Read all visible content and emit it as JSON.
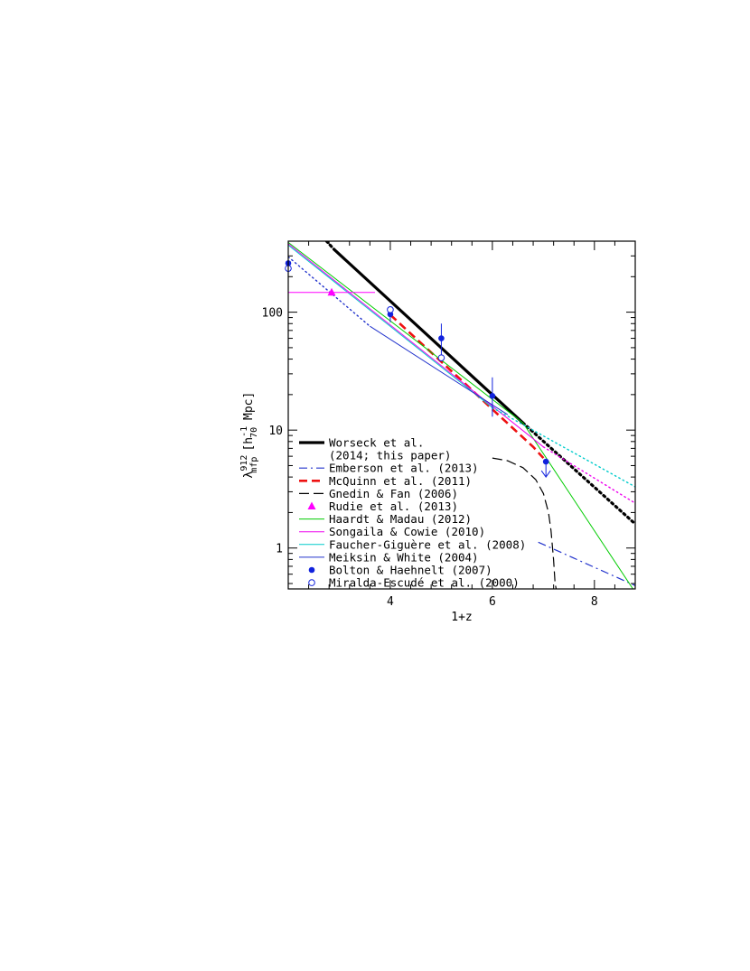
{
  "chart_data": {
    "type": "line",
    "xlabel": "1+z",
    "ylabel": {
      "symbol": "λ",
      "sup": "912",
      "sub": "mfp",
      "unit_open": "[h",
      "unit_sup": "-1",
      "unit_sub": "70",
      "unit_close": " Mpc]"
    },
    "xlim": [
      2.0,
      8.8
    ],
    "ylim": [
      0.45,
      400
    ],
    "yscale": "log",
    "x_ticks": [
      4,
      6,
      8
    ],
    "x_tick_labels": [
      "4",
      "6",
      "8"
    ],
    "y_ticks": [
      1,
      10,
      100
    ],
    "y_tick_labels": [
      "1",
      "10",
      "100"
    ],
    "legend_position": "bottom-left",
    "series": [
      {
        "name": "Worseck et al.",
        "name2": "(2014; this paper)",
        "color": "#000000",
        "style": "solid-thick",
        "x": [
          2.9,
          6.6
        ],
        "y": [
          340,
          11.5
        ],
        "extension": {
          "style": "dotted-thick",
          "x": [
            2.75,
            2.9
          ],
          "y": [
            400,
            340
          ],
          "x2": [
            6.6,
            8.8
          ],
          "y2": [
            11.5,
            1.6
          ]
        }
      },
      {
        "name": "Emberson et al. (2013)",
        "color": "#2233cc",
        "style": "dashdot",
        "x": [
          6.9,
          8.8
        ],
        "y": [
          1.12,
          0.48
        ]
      },
      {
        "name": "McQuinn et al. (2011)",
        "color": "#ee1111",
        "style": "dashed-thick",
        "x": [
          4.0,
          4.5,
          5.0,
          5.5,
          6.0,
          6.5,
          6.8,
          7.0
        ],
        "y": [
          95,
          60,
          38,
          24,
          15,
          9.5,
          7.2,
          5.8
        ]
      },
      {
        "name": "Gnedin & Fan (2006)",
        "color": "#000000",
        "style": "longdash",
        "x": [
          6.0,
          6.3,
          6.6,
          6.85,
          7.0,
          7.1,
          7.15,
          7.2,
          7.23,
          7.25
        ],
        "y": [
          5.8,
          5.5,
          4.8,
          3.8,
          2.9,
          2.0,
          1.4,
          0.8,
          0.5,
          0.45
        ]
      },
      {
        "name": "Rudie et al. (2013)",
        "color": "#ff00ff",
        "style": "marker-triangle",
        "x": [
          2.85
        ],
        "y": [
          147
        ],
        "xerr": [
          [
            2.0,
            3.7
          ]
        ],
        "yerr": [
          [
            138,
            157
          ]
        ]
      },
      {
        "name": "Haardt & Madau (2012)",
        "color": "#00cc00",
        "style": "solid",
        "x": [
          2.0,
          6.6,
          8.8
        ],
        "y": [
          390,
          11.5,
          0.42
        ]
      },
      {
        "name": "Songaila & Cowie (2010)",
        "color": "#ee00ee",
        "style": "solid",
        "x": [
          2.0,
          7.0
        ],
        "y": [
          380,
          7.2
        ],
        "extension": {
          "style": "dotted",
          "x": [
            7.0,
            8.8
          ],
          "y": [
            7.2,
            2.4
          ]
        }
      },
      {
        "name": "Faucher-Giguère et al. (2008)",
        "color": "#00cccc",
        "style": "solid",
        "x": [
          2.0,
          6.0
        ],
        "y": [
          370,
          15.5
        ],
        "extension": {
          "style": "dotted",
          "x": [
            6.0,
            8.8
          ],
          "y": [
            15.5,
            3.3
          ]
        }
      },
      {
        "name": "Meiksin & White (2004)",
        "color": "#2233cc",
        "style": "solid",
        "x": [
          3.6,
          6.3
        ],
        "y": [
          76,
          13.5
        ],
        "extension": {
          "style": "dotted",
          "x": [
            2.0,
            3.6
          ],
          "y": [
            295,
            76
          ]
        }
      },
      {
        "name": "Bolton & Haehnelt (2007)",
        "color": "#1122dd",
        "style": "marker-filled-circle",
        "x": [
          2.0,
          4.0,
          5.0,
          6.0,
          7.05
        ],
        "y": [
          260,
          96,
          60,
          19.5,
          5.4
        ],
        "yerr": [
          [
            200,
            330
          ],
          [
            82,
            112
          ],
          [
            42,
            80
          ],
          [
            13,
            28
          ],
          [
            null,
            null
          ]
        ],
        "upper_limit_index": 4
      },
      {
        "name": "Miralda-Escudé et al. (2000)",
        "color": "#1122dd",
        "style": "marker-open-circle",
        "x": [
          2.0,
          4.0,
          5.0
        ],
        "y": [
          235,
          105,
          41
        ]
      }
    ]
  }
}
